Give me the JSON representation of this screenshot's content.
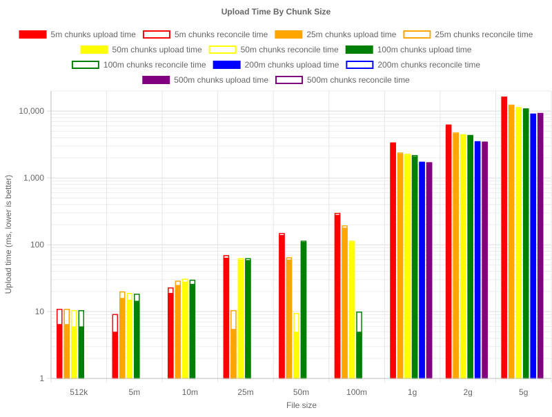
{
  "chart_data": {
    "type": "bar",
    "title": "Upload Time By Chunk Size",
    "xlabel": "File size",
    "ylabel": "Upload time (ms, lower is better)",
    "y_scale": "log",
    "ylim": [
      1,
      20000
    ],
    "y_ticks": [
      {
        "value": 1,
        "label": "1"
      },
      {
        "value": 10,
        "label": "10"
      },
      {
        "value": 100,
        "label": "100"
      },
      {
        "value": 1000,
        "label": "1,000"
      },
      {
        "value": 10000,
        "label": "10,000"
      }
    ],
    "grid": true,
    "legend_position": "top",
    "categories": [
      "512k",
      "5m",
      "10m",
      "25m",
      "50m",
      "100m",
      "1g",
      "2g",
      "5g"
    ],
    "chunk_series": [
      {
        "upload_name": "5m chunks upload time",
        "reconcile_name": "5m chunks reconcile time",
        "color": "#ff0000",
        "upload": [
          6.5,
          5,
          19,
          64,
          140,
          280,
          3300,
          6100,
          16000
        ],
        "reconcile": [
          11,
          9.2,
          23,
          70,
          150,
          300,
          3400,
          6300,
          16500
        ]
      },
      {
        "upload_name": "25m chunks upload time",
        "reconcile_name": "25m chunks reconcile time",
        "color": "#ffa500",
        "upload": [
          6.5,
          16,
          25,
          5.5,
          60,
          180,
          2300,
          4600,
          12000
        ],
        "reconcile": [
          11,
          20,
          29,
          10.5,
          65,
          195,
          2400,
          4800,
          12500
        ]
      },
      {
        "upload_name": "50m chunks upload time",
        "reconcile_name": "50m chunks reconcile time",
        "color": "#ffff00",
        "upload": [
          6,
          15,
          28,
          60,
          5,
          110,
          2200,
          4400,
          11000
        ],
        "reconcile": [
          10.5,
          19,
          31,
          63,
          9.5,
          115,
          2300,
          4500,
          11500
        ]
      },
      {
        "upload_name": "100m chunks upload time",
        "reconcile_name": "100m chunks reconcile time",
        "color": "#008000",
        "upload": [
          6,
          14.5,
          26,
          59,
          110,
          5,
          2100,
          4300,
          10700
        ],
        "reconcile": [
          10.5,
          18.5,
          30,
          63,
          115,
          10,
          2200,
          4400,
          11000
        ]
      },
      {
        "upload_name": "200m chunks upload time",
        "reconcile_name": "200m chunks reconcile time",
        "color": "#0000ff",
        "upload": [
          null,
          null,
          null,
          null,
          null,
          null,
          1700,
          3500,
          9000
        ],
        "reconcile": [
          null,
          null,
          null,
          null,
          null,
          null,
          1750,
          3550,
          9200
        ]
      },
      {
        "upload_name": "500m chunks upload time",
        "reconcile_name": "500m chunks reconcile time",
        "color": "#800080",
        "upload": [
          null,
          null,
          null,
          null,
          null,
          null,
          1700,
          3450,
          9200
        ],
        "reconcile": [
          null,
          null,
          null,
          null,
          null,
          null,
          1720,
          3500,
          9400
        ]
      }
    ]
  }
}
